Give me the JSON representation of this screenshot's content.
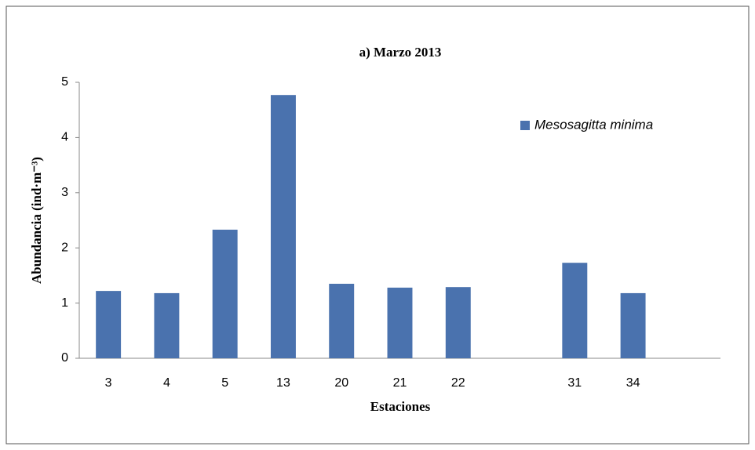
{
  "chart_data": {
    "type": "bar",
    "title": "a) Marzo 2013",
    "x_label": "Estaciones",
    "y_label": "Abundancia (ind·m⁻³)",
    "categories": [
      "3",
      "4",
      "5",
      "13",
      "20",
      "21",
      "22",
      null,
      "31",
      "34",
      null
    ],
    "series": [
      {
        "name": "Mesosagitta minima",
        "color": "#4a72ae",
        "values": [
          1.22,
          1.18,
          2.33,
          4.77,
          1.35,
          1.28,
          1.29,
          null,
          1.73,
          1.18,
          null
        ]
      }
    ],
    "ylim": [
      0,
      5
    ],
    "yticks": [
      0,
      1,
      2,
      3,
      4,
      5
    ],
    "legend": "upper right"
  }
}
